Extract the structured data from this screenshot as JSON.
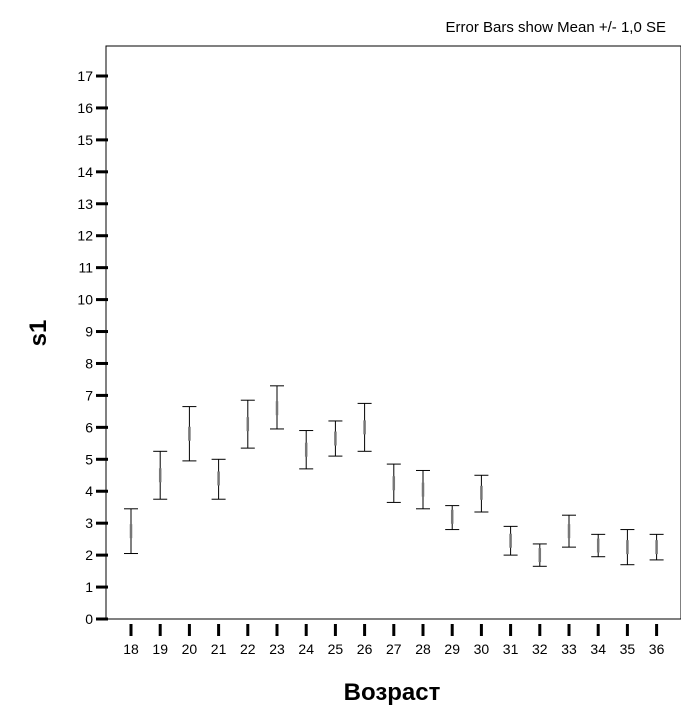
{
  "chart_data": {
    "type": "errorbar",
    "title": "",
    "note": "Error Bars show Mean +/- 1,0 SE",
    "xlabel": "Возраст",
    "ylabel": "s1",
    "ylim": [
      0,
      17
    ],
    "y_ticks": [
      "0",
      "1",
      "2",
      "3",
      "4",
      "5",
      "6",
      "7",
      "8",
      "9",
      "10",
      "11",
      "12",
      "13",
      "14",
      "15",
      "16",
      "17"
    ],
    "categories": [
      "18",
      "19",
      "20",
      "21",
      "22",
      "23",
      "24",
      "25",
      "26",
      "27",
      "28",
      "29",
      "30",
      "31",
      "32",
      "33",
      "34",
      "35",
      "36"
    ],
    "mean": [
      2.75,
      4.5,
      5.8,
      4.4,
      6.1,
      6.6,
      5.3,
      5.65,
      6.0,
      4.25,
      4.05,
      3.2,
      3.95,
      2.45,
      2.0,
      2.75,
      2.3,
      2.25,
      2.25
    ],
    "lower": [
      2.05,
      3.75,
      4.95,
      3.75,
      5.35,
      5.95,
      4.7,
      5.1,
      5.25,
      3.65,
      3.45,
      2.8,
      3.35,
      2.0,
      1.65,
      2.25,
      1.95,
      1.7,
      1.85
    ],
    "upper": [
      3.45,
      5.25,
      6.65,
      5.0,
      6.85,
      7.3,
      5.9,
      6.2,
      6.75,
      4.85,
      4.65,
      3.55,
      4.5,
      2.9,
      2.35,
      3.25,
      2.65,
      2.8,
      2.65
    ],
    "grid": false,
    "legend": "none"
  }
}
